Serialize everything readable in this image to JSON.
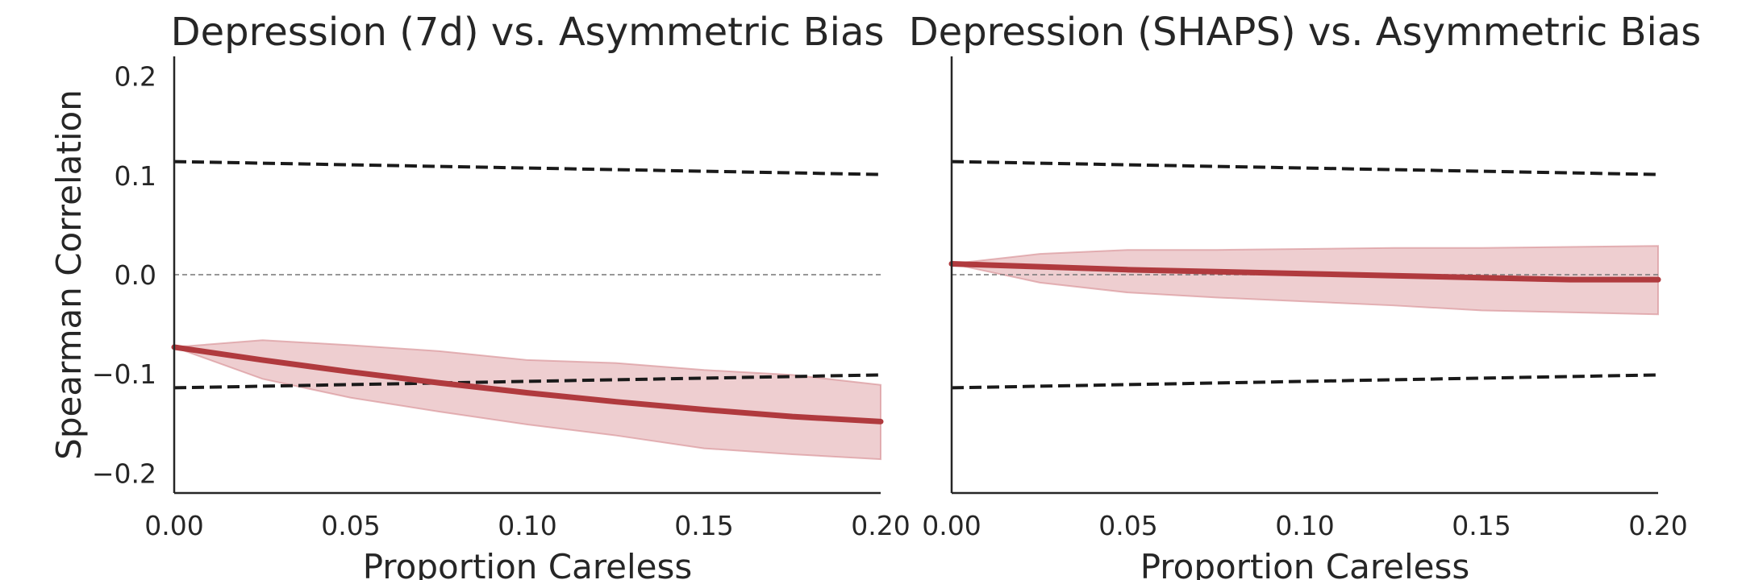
{
  "chart_data": [
    {
      "type": "line",
      "title": "Depression (7d) vs. Asymmetric Bias",
      "xlabel": "Proportion Careless",
      "ylabel": "Spearman Correlation",
      "xlim": [
        0.0,
        0.2
      ],
      "ylim": [
        -0.22,
        0.22
      ],
      "xticks": [
        0.0,
        0.05,
        0.1,
        0.15,
        0.2
      ],
      "xtick_labels": [
        "0.00",
        "0.05",
        "0.10",
        "0.15",
        "0.20"
      ],
      "yticks": [
        0.2,
        0.1,
        0.0,
        -0.1,
        -0.2
      ],
      "ytick_labels": [
        "0.2",
        "0.1",
        "0.0",
        "−0.1",
        "−0.2"
      ],
      "grid": false,
      "x": [
        0.0,
        0.025,
        0.05,
        0.075,
        0.1,
        0.125,
        0.15,
        0.175,
        0.2
      ],
      "series": [
        {
          "values": [
            -0.073,
            -0.086,
            -0.098,
            -0.109,
            -0.119,
            -0.128,
            -0.136,
            -0.143,
            -0.148
          ],
          "ci_lower": [
            -0.073,
            -0.105,
            -0.124,
            -0.138,
            -0.151,
            -0.162,
            -0.175,
            -0.181,
            -0.186
          ],
          "ci_upper": [
            -0.073,
            -0.066,
            -0.071,
            -0.077,
            -0.086,
            -0.089,
            -0.096,
            -0.101,
            -0.111
          ],
          "color": "#b03a3e",
          "band_color": "#d68a8f"
        }
      ],
      "reference_lines": [
        {
          "x": [
            0.0,
            0.2
          ],
          "y": [
            0.114,
            0.101
          ],
          "style": "dashed",
          "color": "#1a1a1a"
        },
        {
          "x": [
            0.0,
            0.2
          ],
          "y": [
            -0.114,
            -0.101
          ],
          "style": "dashed",
          "color": "#1a1a1a"
        },
        {
          "x": [
            0.0,
            0.2
          ],
          "y": [
            0.0,
            0.0
          ],
          "style": "thin-dashed",
          "color": "#777777"
        }
      ]
    },
    {
      "type": "line",
      "title": "Depression (SHAPS) vs. Asymmetric Bias",
      "xlabel": "Proportion Careless",
      "ylabel": "",
      "xlim": [
        0.0,
        0.2
      ],
      "ylim": [
        -0.22,
        0.22
      ],
      "xticks": [
        0.0,
        0.05,
        0.1,
        0.15,
        0.2
      ],
      "xtick_labels": [
        "0.00",
        "0.05",
        "0.10",
        "0.15",
        "0.20"
      ],
      "yticks": [],
      "ytick_labels": [],
      "grid": false,
      "x": [
        0.0,
        0.025,
        0.05,
        0.075,
        0.1,
        0.125,
        0.15,
        0.175,
        0.2
      ],
      "series": [
        {
          "values": [
            0.011,
            0.008,
            0.005,
            0.003,
            0.001,
            -0.001,
            -0.003,
            -0.005,
            -0.005
          ],
          "ci_lower": [
            0.011,
            -0.008,
            -0.018,
            -0.023,
            -0.027,
            -0.031,
            -0.036,
            -0.038,
            -0.04
          ],
          "ci_upper": [
            0.011,
            0.021,
            0.025,
            0.025,
            0.026,
            0.027,
            0.027,
            0.028,
            0.029
          ],
          "color": "#b03a3e",
          "band_color": "#d68a8f"
        }
      ],
      "reference_lines": [
        {
          "x": [
            0.0,
            0.2
          ],
          "y": [
            0.114,
            0.101
          ],
          "style": "dashed",
          "color": "#1a1a1a"
        },
        {
          "x": [
            0.0,
            0.2
          ],
          "y": [
            -0.114,
            -0.101
          ],
          "style": "dashed",
          "color": "#1a1a1a"
        },
        {
          "x": [
            0.0,
            0.2
          ],
          "y": [
            0.0,
            0.0
          ],
          "style": "thin-dashed",
          "color": "#777777"
        }
      ]
    }
  ]
}
